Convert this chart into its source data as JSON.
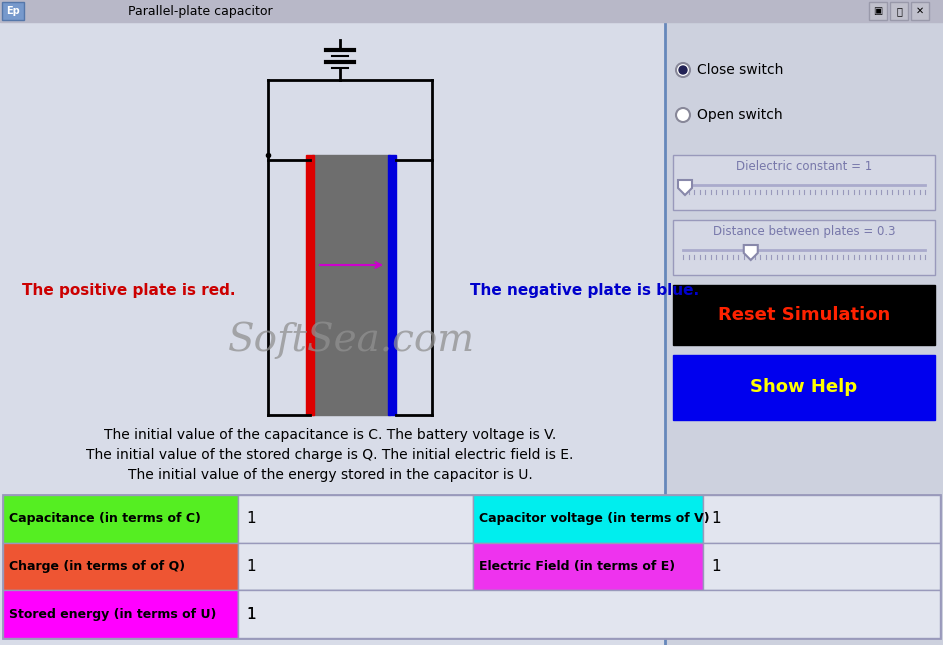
{
  "title": "Parallel-plate capacitor",
  "bg_color": "#d8dce8",
  "right_panel_bg": "#cdd1de",
  "plate_left_color": "#dd0000",
  "plate_right_color": "#0000dd",
  "plate_fill_color": "#707070",
  "positive_plate_label": "The positive plate is red.",
  "negative_plate_label": "The negative plate is blue.",
  "positive_label_color": "#cc0000",
  "negative_label_color": "#0000cc",
  "watermark": "SoftSea.com",
  "watermark_color": "#909090",
  "info_line1": "The initial value of the capacitance is C. The battery voltage is V.",
  "info_line2": "The initial value of the stored charge is Q. The initial electric field is E.",
  "info_line3": "The initial value of the energy stored in the capacitor is U.",
  "close_switch_label": "Close switch",
  "open_switch_label": "Open switch",
  "dielectric_label": "Dielectric constant = 1",
  "distance_label": "Distance between plates = 0.3",
  "reset_label": "Reset Simulation",
  "reset_bg": "#000000",
  "reset_color": "#ff2200",
  "show_help_label": "Show Help",
  "show_help_bg": "#0000ee",
  "show_help_color": "#ffff00",
  "table_rows": [
    {
      "label": "Capacitance (in terms of C)",
      "label_bg": "#55ee22",
      "value": "1",
      "label2": "Capacitor voltage (in terms of V)",
      "label2_bg": "#00eeee",
      "value2": "1"
    },
    {
      "label": "Charge (in terms of of Q)",
      "label_bg": "#ee5533",
      "value": "1",
      "label2": "Electric Field (in terms of E)",
      "label2_bg": "#ee33ee",
      "value2": "1"
    },
    {
      "label": "Stored energy (in terms of U)",
      "label_bg": "#ff00ff",
      "value": "1",
      "label2": "",
      "label2_bg": "#d8dce8",
      "value2": ""
    }
  ],
  "titlebar_color": "#b8b8c8",
  "titlebar_text_color": "#000000",
  "separator_color": "#6688bb"
}
